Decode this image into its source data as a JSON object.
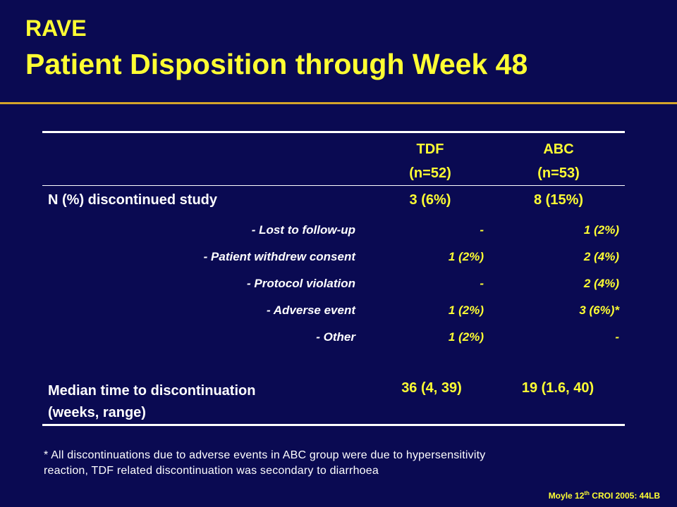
{
  "title": {
    "line1": "RAVE",
    "line2": "Patient Disposition through Week 48"
  },
  "table": {
    "columns": [
      {
        "name": "TDF",
        "n": "(n=52)"
      },
      {
        "name": "ABC",
        "n": "(n=53)"
      }
    ],
    "discontinued": {
      "label": "N (%) discontinued study",
      "tdf": "3 (6%)",
      "abc": "8 (15%)"
    },
    "reasons": [
      {
        "label": "- Lost to follow-up",
        "tdf": "-",
        "abc": "1 (2%)"
      },
      {
        "label": "- Patient withdrew consent",
        "tdf": "1 (2%)",
        "abc": "2 (4%)"
      },
      {
        "label": "- Protocol violation",
        "tdf": "-",
        "abc": "2 (4%)"
      },
      {
        "label": "- Adverse event",
        "tdf": "1 (2%)",
        "abc": "3 (6%)*"
      },
      {
        "label": "- Other",
        "tdf": "1 (2%)",
        "abc": "-"
      }
    ],
    "median": {
      "label_line1": "Median time to discontinuation",
      "label_line2": "(weeks, range)",
      "tdf": "36 (4, 39)",
      "abc": "19 (1.6, 40)"
    }
  },
  "footnote": {
    "line1": "* All discontinuations due to adverse events in ABC group were due to hypersensitivity",
    "line2": "reaction, TDF related discontinuation was secondary to diarrhoea"
  },
  "citation": {
    "prefix": "Moyle 12",
    "sup": "th",
    "suffix": " CROI 2005: 44LB"
  },
  "colors": {
    "background": "#0a0a52",
    "title": "#ffff33",
    "rule": "#d4a52a",
    "text": "#ffffff"
  }
}
